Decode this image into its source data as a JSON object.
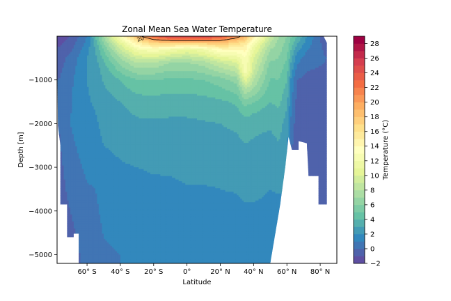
{
  "chart_data": {
    "type": "heatmap",
    "title": "Zonal Mean Sea Water Temperature",
    "xlabel": "Latitude",
    "ylabel": "Depth [m]",
    "xlim": [
      -78,
      90
    ],
    "ylim": [
      -5200,
      0
    ],
    "x_ticks": [
      {
        "value": -60,
        "label": "60° S"
      },
      {
        "value": -40,
        "label": "40° S"
      },
      {
        "value": -20,
        "label": "20° S"
      },
      {
        "value": 0,
        "label": "0°"
      },
      {
        "value": 20,
        "label": "20° N"
      },
      {
        "value": 40,
        "label": "40° N"
      },
      {
        "value": 60,
        "label": "60° N"
      },
      {
        "value": 80,
        "label": "80° N"
      }
    ],
    "y_ticks": [
      {
        "value": -1000,
        "label": "−1000"
      },
      {
        "value": -2000,
        "label": "−2000"
      },
      {
        "value": -3000,
        "label": "−3000"
      },
      {
        "value": -4000,
        "label": "−4000"
      },
      {
        "value": -5000,
        "label": "−5000"
      }
    ],
    "colorbar": {
      "label": "Temperature (°C)",
      "levels": [
        -2,
        -1,
        0,
        1,
        2,
        3,
        4,
        5,
        6,
        7,
        8,
        9,
        10,
        11,
        12,
        13,
        14,
        15,
        16,
        17,
        18,
        19,
        20,
        21,
        22,
        23,
        24,
        25,
        26,
        27,
        28,
        29
      ],
      "tick_values": [
        -2,
        0,
        2,
        4,
        6,
        8,
        10,
        12,
        14,
        16,
        18,
        20,
        22,
        24,
        26,
        28
      ],
      "tick_labels": [
        "−2",
        "0",
        "2",
        "4",
        "6",
        "8",
        "10",
        "12",
        "14",
        "16",
        "18",
        "20",
        "22",
        "24",
        "26",
        "28"
      ],
      "colormap": "Spectral_r"
    },
    "contour_line": {
      "level": 20,
      "label": "20"
    },
    "ocean_bottom": [
      {
        "lat": -78,
        "depth": 0
      },
      {
        "lat": -77.5,
        "depth": -2050
      },
      {
        "lat": -76,
        "depth": -2500
      },
      {
        "lat": -76,
        "depth": -3850
      },
      {
        "lat": -72,
        "depth": -3850
      },
      {
        "lat": -72,
        "depth": -4600
      },
      {
        "lat": -68,
        "depth": -4600
      },
      {
        "lat": -68,
        "depth": -4520
      },
      {
        "lat": -65,
        "depth": -4520
      },
      {
        "lat": -65,
        "depth": -5200
      },
      {
        "lat": 50,
        "depth": -5200
      },
      {
        "lat": 56,
        "depth": -3850
      },
      {
        "lat": 59,
        "depth": -3000
      },
      {
        "lat": 61,
        "depth": -2300
      },
      {
        "lat": 63,
        "depth": -2600
      },
      {
        "lat": 67,
        "depth": -2600
      },
      {
        "lat": 67,
        "depth": -2400
      },
      {
        "lat": 72,
        "depth": -2450
      },
      {
        "lat": 73,
        "depth": -3200
      },
      {
        "lat": 79,
        "depth": -3200
      },
      {
        "lat": 79,
        "depth": -3850
      },
      {
        "lat": 84,
        "depth": -3850
      },
      {
        "lat": 84,
        "depth": -150
      },
      {
        "lat": 82,
        "depth": 0
      }
    ],
    "temperature_profiles": [
      {
        "lat": -77,
        "depths": [
          0,
          -500,
          -1000,
          -2000,
          -3000,
          -4000,
          -5000
        ],
        "temps": [
          -1.5,
          -0.5,
          0,
          0,
          -0.3,
          -0.5,
          -0.7
        ]
      },
      {
        "lat": -70,
        "depths": [
          0,
          -500,
          -1000,
          -2000,
          -3000,
          -4000,
          -5000
        ],
        "temps": [
          -1,
          0.3,
          0.8,
          1,
          0.5,
          0,
          -0.4
        ]
      },
      {
        "lat": -60,
        "depths": [
          0,
          -500,
          -1000,
          -2000,
          -3000,
          -4000,
          -5000
        ],
        "temps": [
          1,
          2,
          2,
          1.8,
          1.2,
          0.6,
          0.3
        ]
      },
      {
        "lat": -55,
        "depths": [
          0,
          -300,
          -700,
          -1500,
          -2500,
          -3500,
          -5000
        ],
        "temps": [
          4,
          3,
          2.5,
          2.1,
          1.6,
          1,
          0.6
        ]
      },
      {
        "lat": -50,
        "depths": [
          0,
          -300,
          -700,
          -1500,
          -2500,
          -3500,
          -5000
        ],
        "temps": [
          7,
          5,
          3.5,
          2.5,
          2,
          1.3,
          0.9
        ]
      },
      {
        "lat": -40,
        "depths": [
          0,
          -200,
          -500,
          -1000,
          -1500,
          -2000,
          -3000,
          -4000,
          -5000
        ],
        "temps": [
          13,
          10,
          7,
          4,
          3,
          2.5,
          1.9,
          1.3,
          1
        ]
      },
      {
        "lat": -30,
        "depths": [
          0,
          -100,
          -300,
          -600,
          -1000,
          -1500,
          -2000,
          -3000,
          -4000,
          -5000
        ],
        "temps": [
          19,
          16,
          12,
          8,
          5,
          3.5,
          2.8,
          2,
          1.4,
          1.1
        ]
      },
      {
        "lat": -20,
        "depths": [
          0,
          -100,
          -300,
          -600,
          -1000,
          -1500,
          -2000,
          -3000,
          -4000,
          -5000
        ],
        "temps": [
          23,
          19,
          13,
          8,
          5,
          3.6,
          2.8,
          2.1,
          1.5,
          1.2
        ]
      },
      {
        "lat": -10,
        "depths": [
          0,
          -100,
          -300,
          -600,
          -1000,
          -1500,
          -2000,
          -3000,
          -4000,
          -5000
        ],
        "temps": [
          26,
          20,
          12,
          7,
          4.8,
          3.5,
          2.8,
          2.1,
          1.6,
          1.3
        ]
      },
      {
        "lat": 0,
        "depths": [
          0,
          -100,
          -300,
          -600,
          -1000,
          -1500,
          -2000,
          -3000,
          -4000,
          -5000
        ],
        "temps": [
          26,
          20,
          11,
          7,
          4.8,
          3.5,
          2.8,
          2.2,
          1.7,
          1.4
        ]
      },
      {
        "lat": 10,
        "depths": [
          0,
          -100,
          -300,
          -600,
          -1000,
          -1500,
          -2000,
          -3000,
          -4000,
          -5000
        ],
        "temps": [
          26,
          20,
          12,
          7.5,
          5,
          3.6,
          2.9,
          2.2,
          1.7,
          1.5
        ]
      },
      {
        "lat": 20,
        "depths": [
          0,
          -100,
          -300,
          -600,
          -1000,
          -1500,
          -2000,
          -3000,
          -4000,
          -5000
        ],
        "temps": [
          24,
          20,
          14,
          9,
          5.5,
          3.8,
          3,
          2.2,
          1.8,
          1.5
        ]
      },
      {
        "lat": 30,
        "depths": [
          0,
          -100,
          -300,
          -600,
          -1000,
          -1500,
          -2000,
          -3000,
          -4000,
          -5000
        ],
        "temps": [
          21,
          18,
          14,
          10,
          6.5,
          4.2,
          3.2,
          2.3,
          1.8,
          1.5
        ]
      },
      {
        "lat": 35,
        "depths": [
          0,
          -200,
          -500,
          -800,
          -1200,
          -1600,
          -2000,
          -3000,
          -4000,
          -5000
        ],
        "temps": [
          19,
          15,
          13,
          13,
          8,
          5,
          3.5,
          2.4,
          1.9,
          1.5
        ]
      },
      {
        "lat": 40,
        "depths": [
          0,
          -200,
          -500,
          -800,
          -1200,
          -1600,
          -2000,
          -3000,
          -4000,
          -5000
        ],
        "temps": [
          15,
          12,
          10,
          9,
          7,
          4.5,
          3.3,
          2.4,
          1.9,
          1.6
        ]
      },
      {
        "lat": 50,
        "depths": [
          0,
          -300,
          -700,
          -1200,
          -1800,
          -2500,
          -3500,
          -5000
        ],
        "temps": [
          9,
          7,
          5.5,
          4.5,
          3.5,
          2.5,
          2,
          1.6
        ]
      },
      {
        "lat": 55,
        "depths": [
          0,
          -500,
          -1000,
          -2000,
          -3000,
          -4000
        ],
        "temps": [
          7,
          6,
          5,
          3.5,
          2.3,
          1.8
        ]
      },
      {
        "lat": 60,
        "depths": [
          0,
          -500,
          -1000,
          -2000,
          -3000
        ],
        "temps": [
          6,
          5,
          4,
          2.5,
          2
        ]
      },
      {
        "lat": 63,
        "depths": [
          0,
          -500,
          -1000,
          -2000,
          -2600
        ],
        "temps": [
          5,
          3,
          1.5,
          0.5,
          0
        ]
      },
      {
        "lat": 66,
        "depths": [
          0,
          -500,
          -1000,
          -2000,
          -2600
        ],
        "temps": [
          4,
          1.5,
          0,
          -0.5,
          -0.6
        ]
      },
      {
        "lat": 72,
        "depths": [
          0,
          -500,
          -1000,
          -2000,
          -3000
        ],
        "temps": [
          2,
          0.5,
          -0.3,
          -0.7,
          -0.8
        ]
      },
      {
        "lat": 80,
        "depths": [
          0,
          -500,
          -1000,
          -2000,
          -3000,
          -4000
        ],
        "temps": [
          0,
          0.3,
          -0.5,
          -0.8,
          -0.9,
          -0.9
        ]
      },
      {
        "lat": 84,
        "depths": [
          0,
          -500,
          -1000,
          -2000,
          -3000,
          -4000
        ],
        "temps": [
          -1,
          0,
          -0.5,
          -0.8,
          -0.9,
          -0.9
        ]
      }
    ]
  }
}
